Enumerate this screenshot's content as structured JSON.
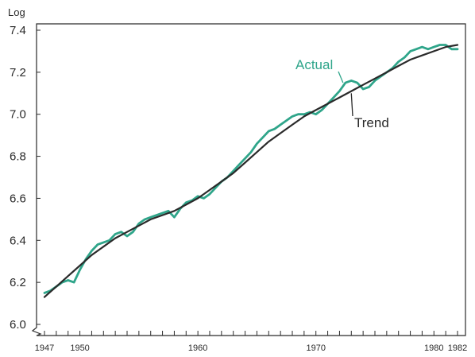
{
  "chart_data": {
    "type": "line",
    "ylabel": "Log",
    "ylim": [
      6.0,
      7.4
    ],
    "xlim": [
      1947,
      1982
    ],
    "y_ticks": [
      "6.0",
      "6.2",
      "6.4",
      "6.6",
      "6.8",
      "7.0",
      "7.2",
      "7.4"
    ],
    "x_ticks": [
      "1947",
      "1950",
      "1960",
      "1970",
      "1980",
      "1982"
    ],
    "grid": false,
    "annotations": [
      {
        "text": "Actual",
        "color": "#2fa58a"
      },
      {
        "text": "Trend",
        "color": "#2a2a2a"
      }
    ],
    "series": [
      {
        "name": "Actual",
        "color": "#2fa58a",
        "x": [
          1947.0,
          1947.5,
          1948.0,
          1948.5,
          1949.0,
          1949.5,
          1950.0,
          1950.5,
          1951.0,
          1951.5,
          1952.0,
          1952.5,
          1953.0,
          1953.5,
          1954.0,
          1954.5,
          1955.0,
          1955.5,
          1956.0,
          1956.5,
          1957.0,
          1957.5,
          1958.0,
          1958.5,
          1959.0,
          1959.5,
          1960.0,
          1960.5,
          1961.0,
          1961.5,
          1962.0,
          1962.5,
          1963.0,
          1963.5,
          1964.0,
          1964.5,
          1965.0,
          1965.5,
          1966.0,
          1966.5,
          1967.0,
          1967.5,
          1968.0,
          1968.5,
          1969.0,
          1969.5,
          1970.0,
          1970.5,
          1971.0,
          1971.5,
          1972.0,
          1972.5,
          1973.0,
          1973.5,
          1974.0,
          1974.5,
          1975.0,
          1975.5,
          1976.0,
          1976.5,
          1977.0,
          1977.5,
          1978.0,
          1978.5,
          1979.0,
          1979.5,
          1980.0,
          1980.5,
          1981.0,
          1981.5,
          1982.0
        ],
        "values": [
          6.15,
          6.16,
          6.18,
          6.2,
          6.21,
          6.2,
          6.26,
          6.31,
          6.35,
          6.38,
          6.39,
          6.4,
          6.43,
          6.44,
          6.42,
          6.44,
          6.48,
          6.5,
          6.51,
          6.52,
          6.53,
          6.54,
          6.51,
          6.55,
          6.58,
          6.59,
          6.61,
          6.6,
          6.62,
          6.65,
          6.68,
          6.7,
          6.73,
          6.76,
          6.79,
          6.82,
          6.86,
          6.89,
          6.92,
          6.93,
          6.95,
          6.97,
          6.99,
          7.0,
          7.0,
          7.01,
          7.0,
          7.02,
          7.05,
          7.08,
          7.11,
          7.15,
          7.16,
          7.15,
          7.12,
          7.13,
          7.16,
          7.18,
          7.2,
          7.22,
          7.25,
          7.27,
          7.3,
          7.31,
          7.32,
          7.31,
          7.32,
          7.33,
          7.33,
          7.31,
          7.31
        ]
      },
      {
        "name": "Trend",
        "color": "#2a2a2a",
        "x": [
          1947,
          1948,
          1949,
          1950,
          1951,
          1952,
          1953,
          1954,
          1955,
          1956,
          1957,
          1958,
          1959,
          1960,
          1961,
          1962,
          1963,
          1964,
          1965,
          1966,
          1967,
          1968,
          1969,
          1970,
          1971,
          1972,
          1973,
          1974,
          1975,
          1976,
          1977,
          1978,
          1979,
          1980,
          1981,
          1982
        ],
        "values": [
          6.13,
          6.18,
          6.23,
          6.28,
          6.33,
          6.37,
          6.41,
          6.44,
          6.47,
          6.5,
          6.52,
          6.54,
          6.57,
          6.6,
          6.64,
          6.68,
          6.72,
          6.77,
          6.82,
          6.87,
          6.91,
          6.95,
          6.99,
          7.02,
          7.05,
          7.08,
          7.11,
          7.14,
          7.17,
          7.2,
          7.23,
          7.26,
          7.28,
          7.3,
          7.32,
          7.33
        ]
      }
    ]
  }
}
